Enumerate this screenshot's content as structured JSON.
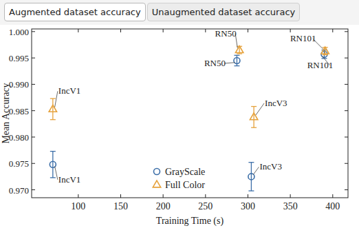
{
  "tabs": {
    "items": [
      "Augmented dataset accuracy",
      "Unaugmented dataset accuracy"
    ],
    "selected": 0
  },
  "chart_data": {
    "type": "scatter",
    "x_label": "Training Time (s)",
    "y_label": "Mean Accuracy",
    "xlim": [
      45,
      418
    ],
    "xticks": [
      100,
      150,
      200,
      250,
      300,
      350,
      400
    ],
    "ylim": [
      0.9685,
      1.0005
    ],
    "yticks": [
      {
        "value": 0.97,
        "label": "0.970"
      },
      0.975,
      {
        "value": 0.98,
        "label": "0.980"
      },
      0.985,
      {
        "value": 0.99,
        "label": "0.990"
      },
      0.995,
      {
        "value": 1,
        "label": "1.000"
      }
    ],
    "legend": "lower center",
    "grid": false,
    "series": [
      {
        "name": "GrayScale",
        "color": "#3d6fa8",
        "marker": "circle",
        "labels": [
          "IncV1",
          "RN50",
          "IncV3",
          "RN101"
        ],
        "x": [
          70,
          287,
          304,
          390
        ],
        "values": [
          0.9748,
          0.9945,
          0.9725,
          0.9957
        ],
        "errors": [
          0.0025,
          0.001,
          0.0027,
          0.0008
        ]
      },
      {
        "name": "Full Color",
        "color": "#e6a23c",
        "marker": "triangle",
        "labels": [
          "IncV1",
          "RN50",
          "IncV3",
          "RN101"
        ],
        "x": [
          70,
          290,
          307,
          391
        ],
        "values": [
          0.9853,
          0.9965,
          0.9838,
          0.9963
        ],
        "errors": [
          0.002,
          0.0007,
          0.002,
          0.0007
        ]
      }
    ]
  }
}
